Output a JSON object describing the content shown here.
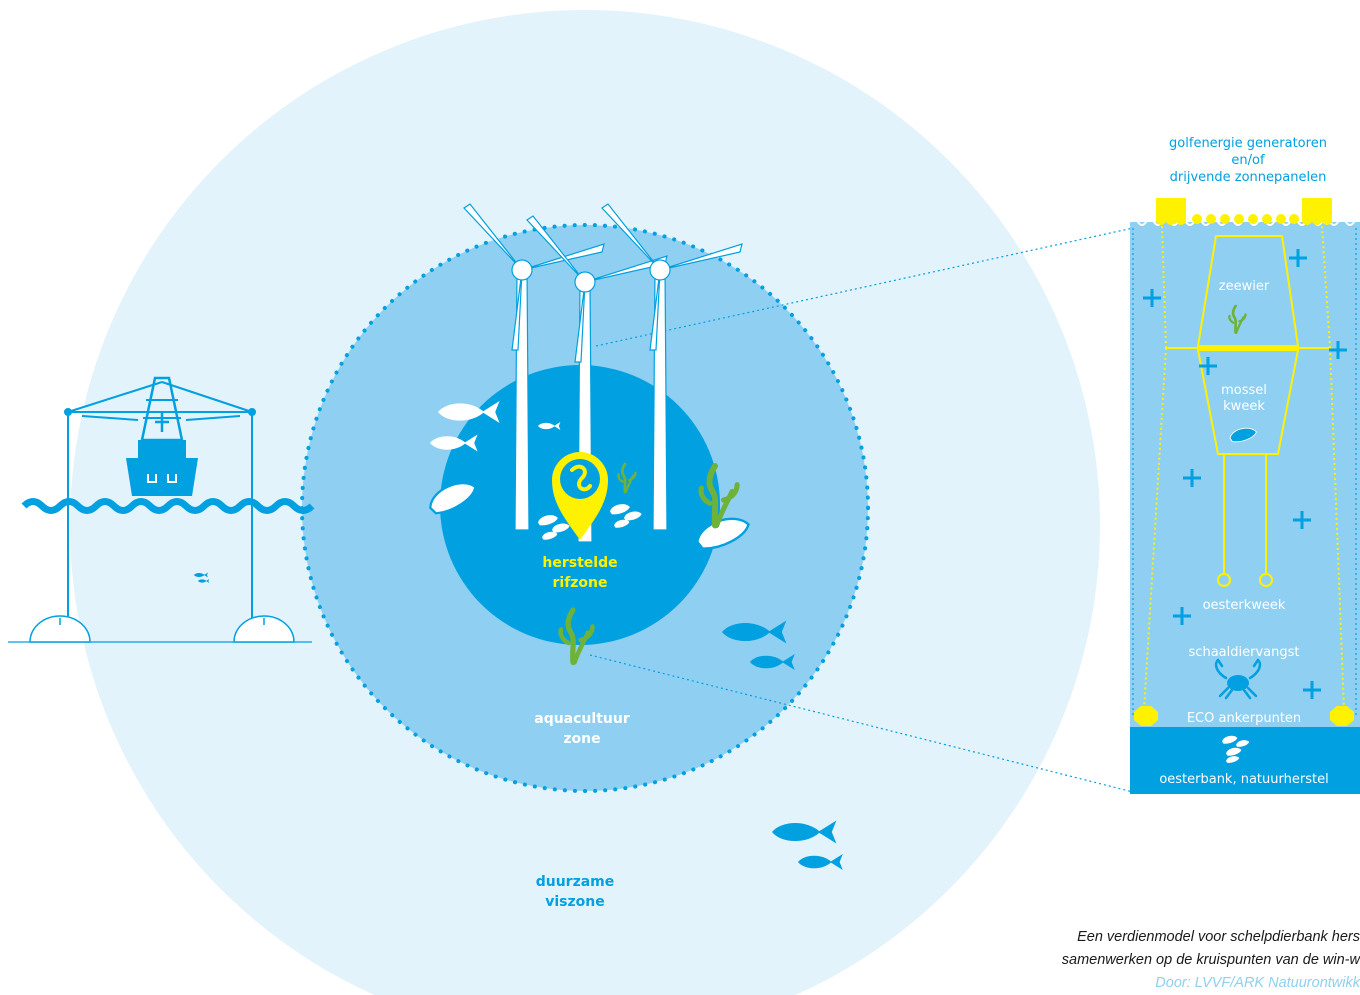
{
  "colors": {
    "outer_zone": "#e3f3fb",
    "aquaculture_zone": "#8fd0f2",
    "reef_zone": "#00a0e1",
    "panel_bg": "#8fd0f2",
    "panel_bottom": "#00a0e1",
    "accent_yellow": "#fff200",
    "seaweed_green": "#6fb23a",
    "icon_blue": "#00a0e1",
    "white": "#ffffff"
  },
  "zones": {
    "reef": {
      "line1": "herstelde",
      "line2": "rifzone"
    },
    "aquaculture": {
      "line1": "aquacultuur",
      "line2": "zone"
    },
    "fishing": {
      "line1": "duurzame",
      "line2": "viszone"
    }
  },
  "panel": {
    "top_label": {
      "line1": "golfenergie generatoren",
      "line2": "en/of",
      "line3": "drijvende zonnepanelen"
    },
    "seaweed": "zeewier",
    "mussel": {
      "line1": "mossel",
      "line2": "kweek"
    },
    "oyster_farming": "oesterkweek",
    "shellfish_catch": "schaaldiervangst",
    "eco_anchors": "ECO ankerpunten",
    "oyster_bank": "oesterbank, natuurherstel"
  },
  "caption": {
    "line1": "Een verdienmodel voor schelpdierbank hers",
    "line2": "samenwerken op de kruispunten van de win-w",
    "credit": "Door: LVVF/ARK Natuurontwikk"
  },
  "icons": [
    "wind-turbine-icon",
    "fish-icon",
    "oyster-icon",
    "mussel-icon",
    "seaweed-icon",
    "crab-icon",
    "location-pin-icon",
    "ship-icon",
    "plus-icon",
    "wave-icon"
  ]
}
